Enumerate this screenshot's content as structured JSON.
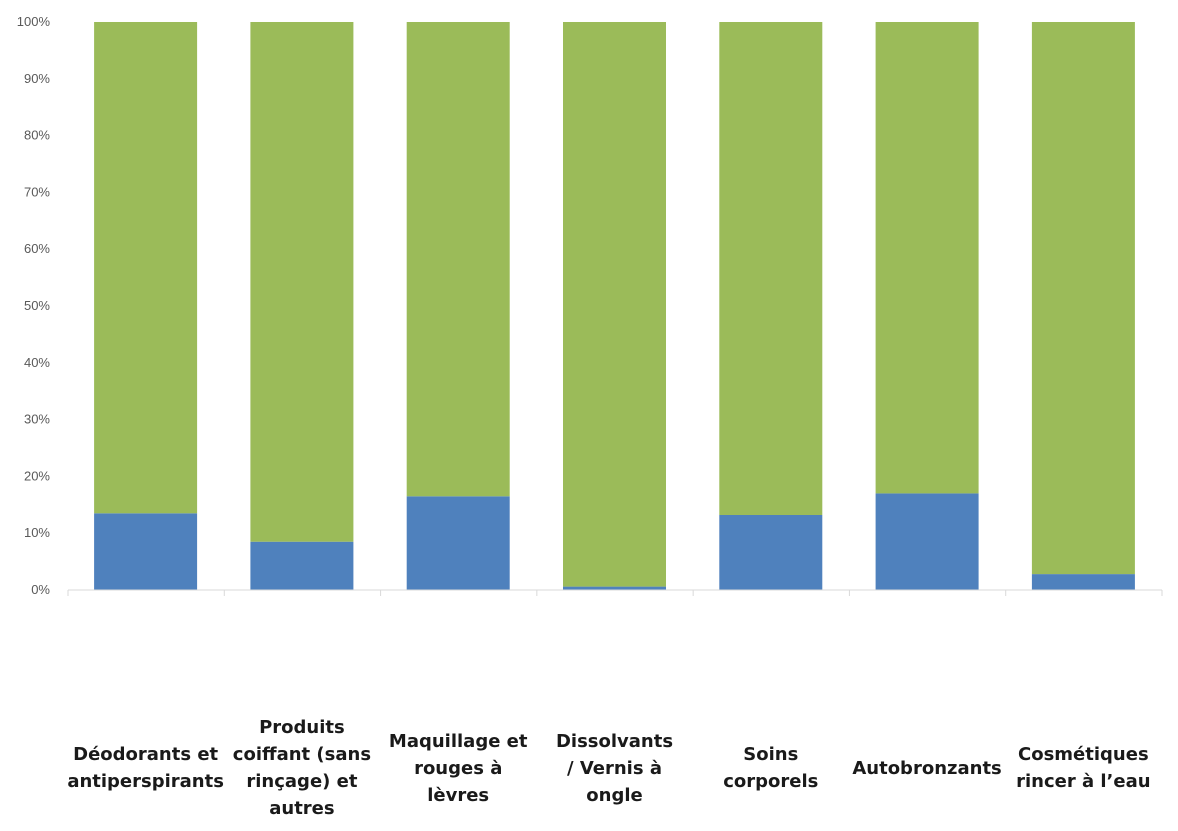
{
  "chart_data": {
    "type": "bar",
    "stacked": true,
    "percent": true,
    "ylim": [
      0,
      100
    ],
    "ytick_labels": [
      "0%",
      "10%",
      "20%",
      "30%",
      "40%",
      "50%",
      "60%",
      "70%",
      "80%",
      "90%",
      "100%"
    ],
    "categories": [
      [
        "Déodorants et",
        "antiperspirants"
      ],
      [
        "Produits",
        "coiffant (sans",
        "rinçage) et",
        "autres"
      ],
      [
        "Maquillage et",
        "rouges à",
        "lèvres"
      ],
      [
        "Dissolvants",
        "/ Vernis à",
        "ongle"
      ],
      [
        "Soins",
        "corporels"
      ],
      [
        "Autobronzants"
      ],
      [
        "Cosmétiques",
        "rincer à l’eau"
      ]
    ],
    "series": [
      {
        "values": [
          13.5,
          8.5,
          16.5,
          0.6,
          13.2,
          17.0,
          2.8
        ],
        "color": "#4F81BD"
      },
      {
        "values": [
          86.5,
          91.5,
          83.5,
          99.4,
          86.8,
          83.0,
          97.2
        ],
        "color": "#9BBB59"
      }
    ],
    "grid": false,
    "legend": "none"
  }
}
